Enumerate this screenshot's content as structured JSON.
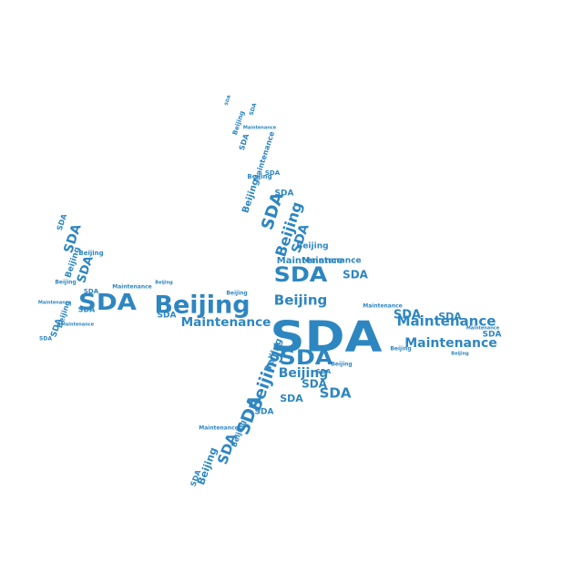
{
  "word_cloud": {
    "shape": "airplane",
    "color": "#2e86c1",
    "words": [
      "SDA",
      "Beijing",
      "Maintenance"
    ]
  }
}
